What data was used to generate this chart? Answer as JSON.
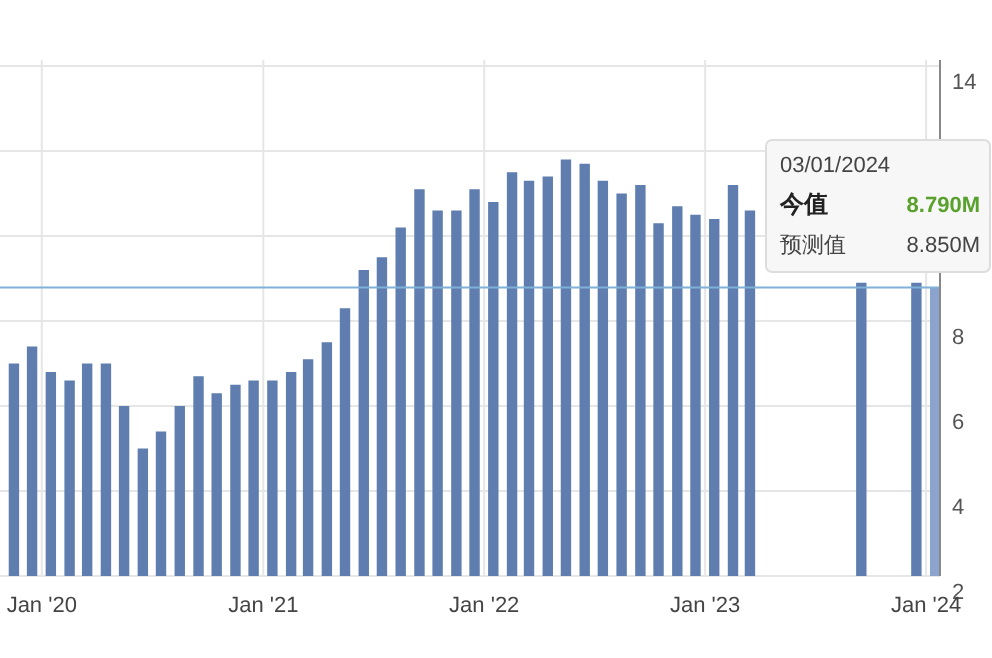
{
  "chart_data": {
    "type": "bar",
    "x": [
      "2019-11-16",
      "2019-12-16",
      "2020-01-16",
      "2020-02-16",
      "2020-03-16",
      "2020-04-16",
      "2020-05-16",
      "2020-06-16",
      "2020-07-16",
      "2020-08-16",
      "2020-09-16",
      "2020-10-16",
      "2020-11-16",
      "2020-12-16",
      "2021-01-16",
      "2021-02-16",
      "2021-03-16",
      "2021-04-16",
      "2021-05-16",
      "2021-06-16",
      "2021-07-16",
      "2021-08-16",
      "2021-09-16",
      "2021-10-16",
      "2021-11-16",
      "2021-12-16",
      "2022-01-16",
      "2022-02-16",
      "2022-03-16",
      "2022-04-16",
      "2022-05-16",
      "2022-06-16",
      "2022-07-16",
      "2022-08-16",
      "2022-09-16",
      "2022-10-16",
      "2022-11-16",
      "2022-12-16",
      "2023-01-16",
      "2023-02-16",
      "2023-03-16",
      "2023-04-16",
      "2023-05-16",
      "2023-06-16",
      "2023-07-16",
      "2023-08-16",
      "2023-09-16",
      "2023-10-16",
      "2023-11-16",
      "2023-12-16",
      "2024-01-16"
    ],
    "values": [
      7.0,
      7.4,
      6.8,
      6.6,
      7.0,
      7.0,
      6.0,
      5.0,
      5.4,
      6.0,
      6.7,
      6.3,
      6.5,
      6.6,
      6.6,
      6.8,
      7.1,
      7.5,
      8.3,
      9.2,
      9.5,
      10.2,
      11.1,
      10.6,
      10.6,
      11.1,
      10.8,
      11.5,
      11.3,
      11.4,
      11.8,
      11.7,
      11.3,
      11.0,
      11.2,
      10.3,
      10.7,
      10.5,
      10.4,
      11.2,
      10.6,
      null,
      null,
      null,
      null,
      null,
      8.9,
      null,
      null,
      8.9,
      8.79
    ],
    "colors": [
      "#5f7eaf",
      "#5f7eaf",
      "#5f7eaf",
      "#5f7eaf",
      "#5f7eaf",
      "#5f7eaf",
      "#5f7eaf",
      "#5f7eaf",
      "#5f7eaf",
      "#5f7eaf",
      "#5f7eaf",
      "#5f7eaf",
      "#5f7eaf",
      "#5f7eaf",
      "#5f7eaf",
      "#5f7eaf",
      "#5f7eaf",
      "#5f7eaf",
      "#5f7eaf",
      "#5f7eaf",
      "#5f7eaf",
      "#5f7eaf",
      "#5f7eaf",
      "#5f7eaf",
      "#5f7eaf",
      "#5f7eaf",
      "#5f7eaf",
      "#5f7eaf",
      "#5f7eaf",
      "#5f7eaf",
      "#5f7eaf",
      "#5f7eaf",
      "#5f7eaf",
      "#5f7eaf",
      "#5f7eaf",
      "#5f7eaf",
      "#5f7eaf",
      "#5f7eaf",
      "#5f7eaf",
      "#5f7eaf",
      "#5f7eaf",
      null,
      null,
      null,
      null,
      null,
      "#5f7eaf",
      null,
      null,
      "#5f7eaf",
      "#8aa4cd"
    ],
    "xlim": [
      "2019-10-24",
      "2024-01-24"
    ],
    "xticks": [
      {
        "value": "2020-01-01",
        "label": "Jan '20"
      },
      {
        "value": "2021-01-01",
        "label": "Jan '21"
      },
      {
        "value": "2022-01-01",
        "label": "Jan '22"
      },
      {
        "value": "2023-01-01",
        "label": "Jan '23"
      },
      {
        "value": "2024-01-01",
        "label": "Jan '24"
      }
    ],
    "ylim": [
      2,
      14
    ],
    "yticks": [
      2,
      4,
      6,
      8,
      {
        "value": 10,
        "label": null
      },
      {
        "value": 12,
        "label": null
      },
      14
    ],
    "grid": true,
    "ref_lines": [
      {
        "axis": "y",
        "value": 8.79,
        "color": "#7fb0d8"
      }
    ],
    "annotations": [
      "03/01/2024",
      "今值",
      "8.790M",
      "预测值",
      "8.850M"
    ]
  }
}
